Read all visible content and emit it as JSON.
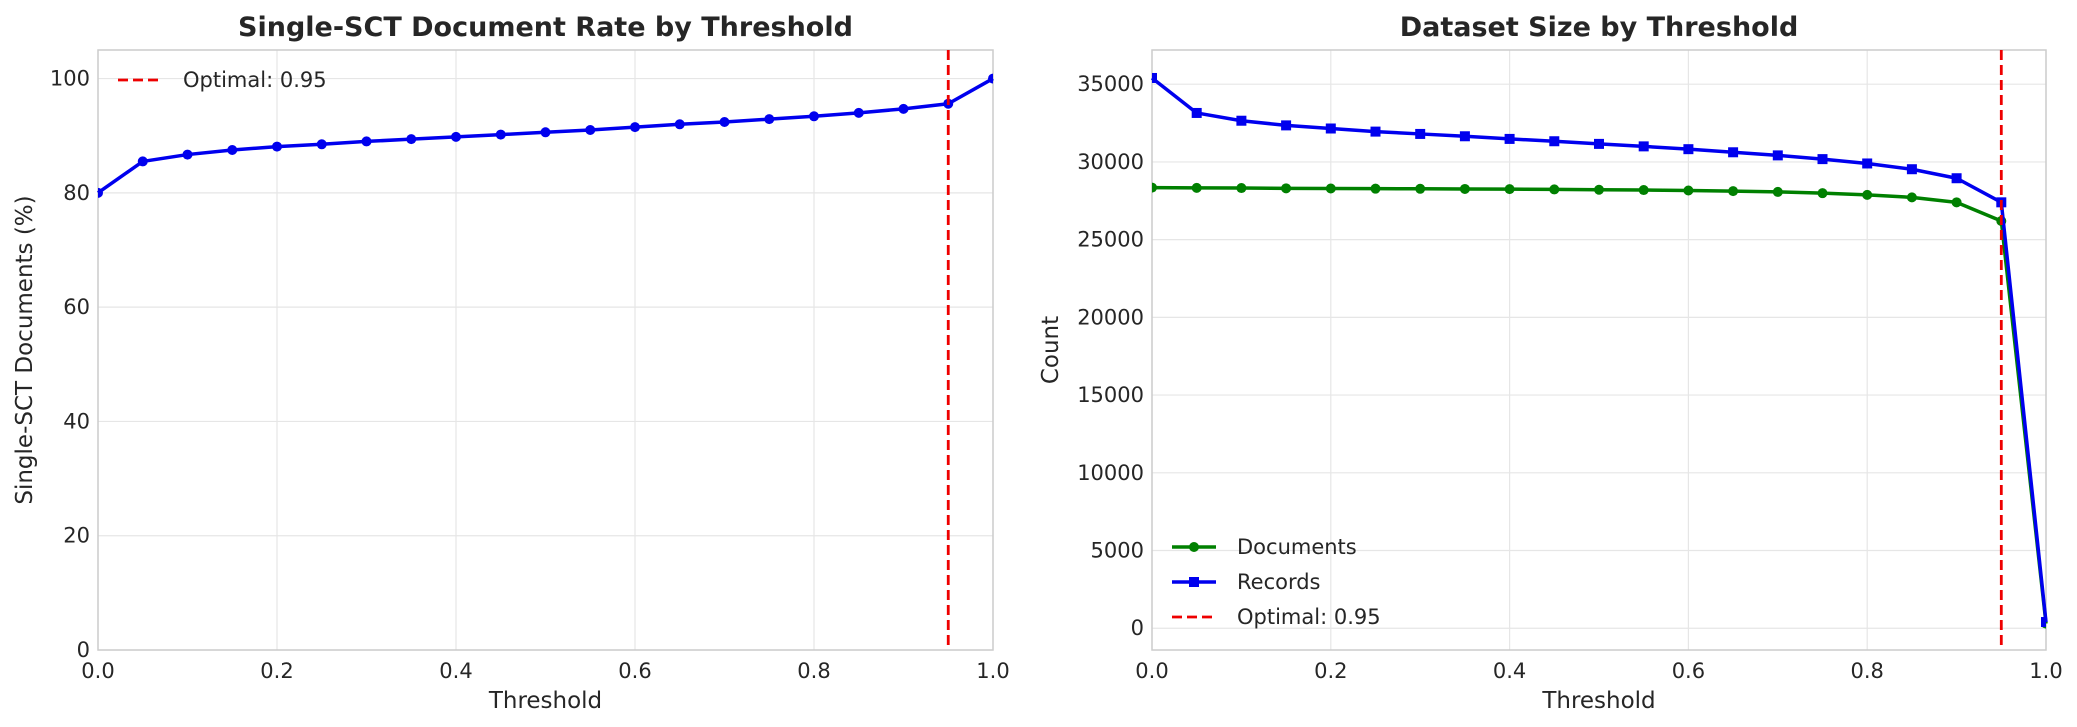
{
  "chart_data": [
    {
      "type": "line",
      "title": "Single-SCT Document Rate by Threshold",
      "xlabel": "Threshold",
      "ylabel": "Single-SCT Documents (%)",
      "xlim": [
        0.0,
        1.0
      ],
      "ylim": [
        0,
        105
      ],
      "xticks": [
        "0.0",
        "0.2",
        "0.4",
        "0.6",
        "0.8",
        "1.0"
      ],
      "yticks": [
        "0",
        "20",
        "40",
        "60",
        "80",
        "100"
      ],
      "grid": true,
      "legend_position": "upper-left",
      "x": [
        0.0,
        0.05,
        0.1,
        0.15,
        0.2,
        0.25,
        0.3,
        0.35,
        0.4,
        0.45,
        0.5,
        0.55,
        0.6,
        0.65,
        0.7,
        0.75,
        0.8,
        0.85,
        0.9,
        0.95,
        1.0
      ],
      "series": [
        {
          "name": "",
          "color": "#0000ee",
          "marker": "circle",
          "values": [
            80.0,
            85.5,
            86.7,
            87.5,
            88.1,
            88.5,
            89.0,
            89.4,
            89.8,
            90.2,
            90.6,
            91.0,
            91.5,
            92.0,
            92.4,
            92.9,
            93.4,
            94.0,
            94.7,
            95.6,
            100.0
          ]
        }
      ],
      "vline": {
        "x": 0.95,
        "color": "#ee0000",
        "label": "Optimal: 0.95"
      }
    },
    {
      "type": "line",
      "title": "Dataset Size by Threshold",
      "xlabel": "Threshold",
      "ylabel": "Count",
      "xlim": [
        0.0,
        1.0
      ],
      "ylim": [
        -1400,
        37200
      ],
      "xticks": [
        "0.0",
        "0.2",
        "0.4",
        "0.6",
        "0.8",
        "1.0"
      ],
      "yticks": [
        "0",
        "5000",
        "10000",
        "15000",
        "20000",
        "25000",
        "30000",
        "35000"
      ],
      "grid": true,
      "legend_position": "lower-left",
      "x": [
        0.0,
        0.05,
        0.1,
        0.15,
        0.2,
        0.25,
        0.3,
        0.35,
        0.4,
        0.45,
        0.5,
        0.55,
        0.6,
        0.65,
        0.7,
        0.75,
        0.8,
        0.85,
        0.9,
        0.95,
        1.0
      ],
      "series": [
        {
          "name": "Documents",
          "color": "#008000",
          "marker": "circle",
          "values": [
            28350,
            28330,
            28320,
            28300,
            28290,
            28280,
            28270,
            28260,
            28250,
            28230,
            28210,
            28190,
            28160,
            28120,
            28070,
            27990,
            27880,
            27720,
            27400,
            26200,
            300
          ]
        },
        {
          "name": "Records",
          "color": "#0000ee",
          "marker": "square",
          "values": [
            35400,
            33150,
            32650,
            32350,
            32150,
            31950,
            31800,
            31650,
            31480,
            31330,
            31160,
            31000,
            30820,
            30620,
            30420,
            30180,
            29900,
            29530,
            28950,
            27400,
            400
          ]
        }
      ],
      "vline": {
        "x": 0.95,
        "color": "#ee0000",
        "label": "Optimal: 0.95"
      }
    }
  ]
}
